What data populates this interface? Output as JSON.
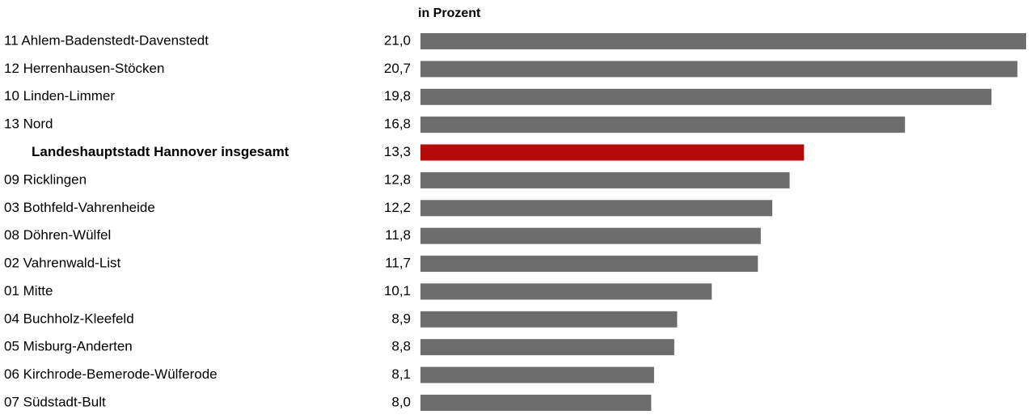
{
  "chart_data": {
    "type": "bar",
    "subtitle": "in Prozent",
    "categories": [
      "11 Ahlem-Badenstedt-Davenstedt",
      "12 Herrenhausen-Stöcken",
      "10 Linden-Limmer",
      "13 Nord",
      "Landeshauptstadt Hannover insgesamt",
      "09 Ricklingen",
      "03 Bothfeld-Vahrenheide",
      "08 Döhren-Wülfel",
      "02 Vahrenwald-List",
      "01 Mitte",
      "04 Buchholz-Kleefeld",
      "05 Misburg-Anderten",
      "06 Kirchrode-Bemerode-Wülferode",
      "07 Südstadt-Bult"
    ],
    "values": [
      21.0,
      20.7,
      19.8,
      16.8,
      13.3,
      12.8,
      12.2,
      11.8,
      11.7,
      10.1,
      8.9,
      8.8,
      8.1,
      8.0
    ],
    "value_labels": [
      "21,0",
      "20,7",
      "19,8",
      "16,8",
      "13,3",
      "12,8",
      "12,2",
      "11,8",
      "11,7",
      "10,1",
      "8,9",
      "8,8",
      "8,1",
      "8,0"
    ],
    "colors": [
      "#6d6d6d",
      "#6d6d6d",
      "#6d6d6d",
      "#6d6d6d",
      "#b40a0a",
      "#6d6d6d",
      "#6d6d6d",
      "#6d6d6d",
      "#6d6d6d",
      "#6d6d6d",
      "#6d6d6d",
      "#6d6d6d",
      "#6d6d6d",
      "#6d6d6d"
    ]
  }
}
